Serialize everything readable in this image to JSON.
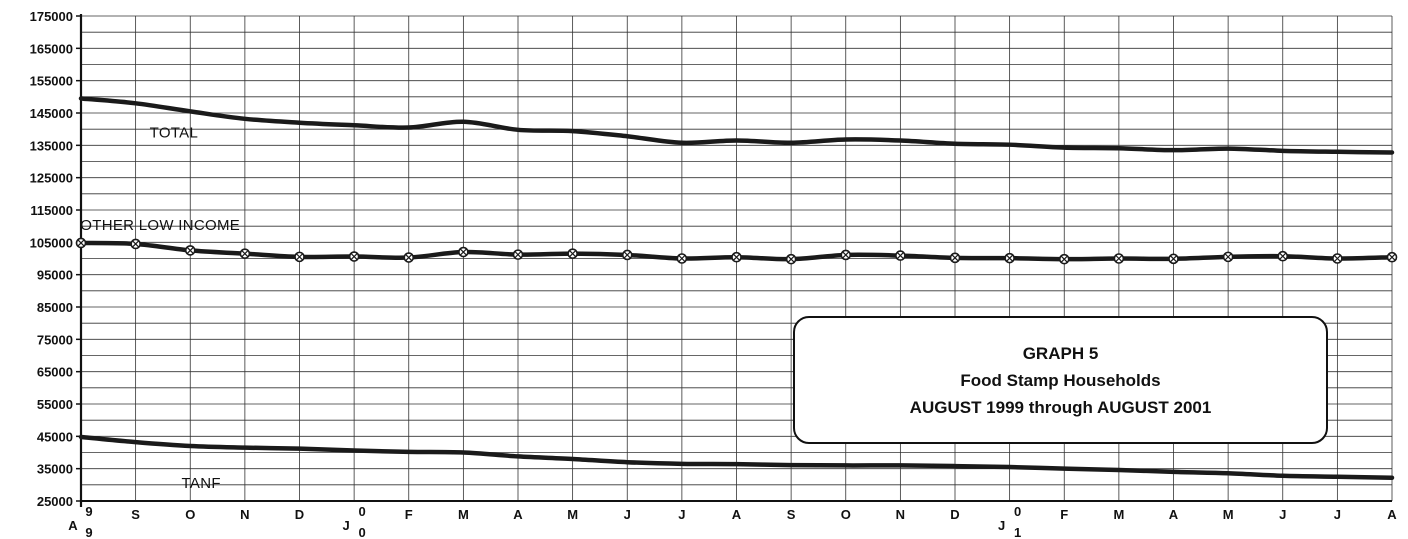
{
  "chart_data": {
    "type": "line",
    "title": "GRAPH 5",
    "subtitle": "Food Stamp Households",
    "period": "AUGUST 1999 through AUGUST 2001",
    "ylim": [
      25000,
      175000
    ],
    "yticks": [
      25000,
      35000,
      45000,
      55000,
      65000,
      75000,
      85000,
      95000,
      105000,
      115000,
      125000,
      135000,
      145000,
      155000,
      165000,
      175000
    ],
    "grid": true,
    "x": [
      "A",
      "S",
      "O",
      "N",
      "D",
      "J",
      "F",
      "M",
      "A",
      "M",
      "J",
      "J",
      "A",
      "S",
      "O",
      "N",
      "D",
      "J",
      "F",
      "M",
      "A",
      "M",
      "J",
      "J",
      "A"
    ],
    "x_year_marks": [
      {
        "index": 0,
        "top": "9",
        "bottom": "9"
      },
      {
        "index": 5,
        "top": "0",
        "bottom": "0"
      },
      {
        "index": 17,
        "top": "0",
        "bottom": "1"
      }
    ],
    "series": [
      {
        "name": "TOTAL",
        "label_at": {
          "x": 1.7,
          "y": 137500
        },
        "markers": false,
        "values": [
          149500,
          148000,
          145500,
          143200,
          142000,
          141200,
          140500,
          142300,
          139800,
          139400,
          137800,
          135800,
          136500,
          135800,
          136800,
          136500,
          135500,
          135200,
          134300,
          134100,
          133500,
          134000,
          133300,
          133000,
          132800
        ]
      },
      {
        "name": "OTHER LOW INCOME",
        "label_at": {
          "x": 1.45,
          "y": 108800
        },
        "markers": true,
        "values": [
          104800,
          104500,
          102500,
          101500,
          100500,
          100600,
          100300,
          102000,
          101200,
          101500,
          101100,
          100000,
          100400,
          99800,
          101100,
          100900,
          100200,
          100100,
          99800,
          100000,
          99900,
          100500,
          100700,
          100000,
          100400
        ]
      },
      {
        "name": "TANF",
        "label_at": {
          "x": 2.2,
          "y": 29000
        },
        "markers": false,
        "values": [
          44800,
          43200,
          42000,
          41500,
          41200,
          40600,
          40200,
          40000,
          38800,
          38000,
          37000,
          36500,
          36400,
          36100,
          36000,
          36000,
          35800,
          35500,
          35000,
          34600,
          34000,
          33600,
          32800,
          32500,
          32200
        ]
      }
    ]
  }
}
